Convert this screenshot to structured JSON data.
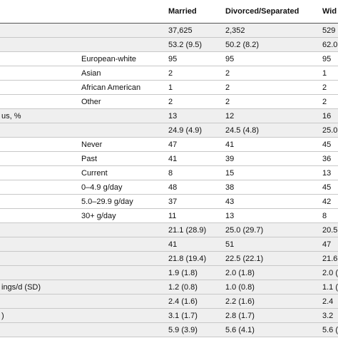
{
  "table": {
    "header": [
      null,
      null,
      "Married",
      "Divorced/Separated",
      "Wid"
    ],
    "rows": [
      [
        null,
        null,
        "37,625",
        "2,352",
        "529"
      ],
      [
        null,
        null,
        "53.2 (9.5)",
        "50.2 (8.2)",
        "62.0"
      ],
      [
        null,
        "European-white",
        "95",
        "95",
        "95"
      ],
      [
        null,
        "Asian",
        "2",
        "2",
        "1"
      ],
      [
        null,
        "African American",
        "1",
        "2",
        "2"
      ],
      [
        null,
        "Other",
        "2",
        "2",
        "2"
      ],
      [
        "us, %",
        null,
        "13",
        "12",
        "16"
      ],
      [
        null,
        null,
        "24.9 (4.9)",
        "24.5 (4.8)",
        "25.0"
      ],
      [
        null,
        "Never",
        "47",
        "41",
        "45"
      ],
      [
        null,
        "Past",
        "41",
        "39",
        "36"
      ],
      [
        null,
        "Current",
        "8",
        "15",
        "13"
      ],
      [
        null,
        "0–4.9 g/day",
        "48",
        "38",
        "45"
      ],
      [
        null,
        "5.0–29.9 g/day",
        "37",
        "43",
        "42"
      ],
      [
        null,
        "30+ g/day",
        "11",
        "13",
        "8"
      ],
      [
        null,
        null,
        "21.1 (28.9)",
        "25.0 (29.7)",
        "20.5"
      ],
      [
        null,
        null,
        "41",
        "51",
        "47"
      ],
      [
        null,
        null,
        "21.8 (19.4)",
        "22.5 (22.1)",
        "21.6"
      ],
      [
        null,
        null,
        "1.9 (1.8)",
        "2.0 (1.8)",
        "2.0 ("
      ],
      [
        "ings/d (SD)",
        null,
        "1.2 (0.8)",
        "1.0 (0.8)",
        "1.1 ("
      ],
      [
        null,
        null,
        "2.4 (1.6)",
        "2.2 (1.6)",
        "2.4"
      ],
      [
        ")",
        null,
        "3.1 (1.7)",
        "2.8 (1.7)",
        "3.2"
      ],
      [
        null,
        null,
        "5.9 (3.9)",
        "5.6 (4.1)",
        "5.6 ("
      ]
    ]
  }
}
